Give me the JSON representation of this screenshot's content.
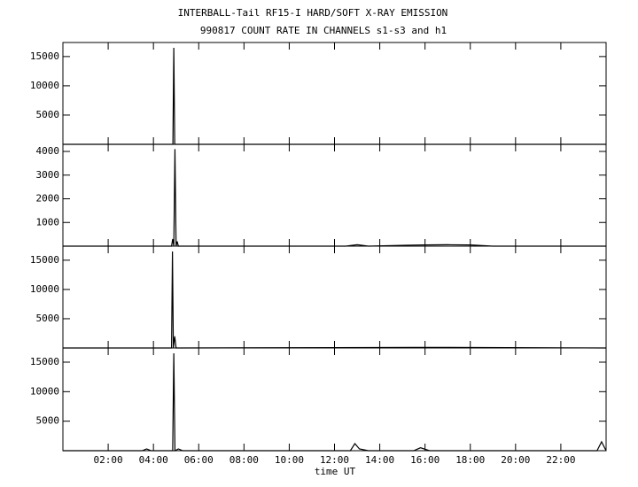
{
  "chart_data": [
    {
      "type": "line",
      "title": "INTERBALL-Tail RF15-I HARD/SOFT X-RAY EMISSION",
      "subtitle": "990817  COUNT RATE IN CHANNELS s1-s3 and h1",
      "x": [
        0,
        4.86,
        4.9,
        4.94,
        24
      ],
      "values": [
        0,
        0,
        16500,
        0,
        0
      ],
      "color": "#000000",
      "xlim": [
        0,
        24
      ],
      "ylim": [
        0,
        17400
      ],
      "yticks": [
        5000,
        10000,
        15000
      ]
    },
    {
      "type": "line",
      "x": [
        0,
        4.8,
        4.85,
        4.9,
        4.95,
        5.0,
        5.05,
        5.1,
        12.5,
        13.0,
        13.5,
        15.2,
        16,
        17,
        18,
        19,
        24
      ],
      "values": [
        0,
        0,
        300,
        0,
        4100,
        0,
        200,
        0,
        0,
        60,
        0,
        40,
        50,
        60,
        50,
        0,
        0
      ],
      "color": "#000000",
      "xlim": [
        0,
        24
      ],
      "ylim": [
        0,
        4300
      ],
      "yticks": [
        1000,
        2000,
        3000,
        4000
      ]
    },
    {
      "type": "line",
      "x": [
        0,
        4.8,
        4.84,
        4.88,
        4.94,
        5.0,
        15.5,
        16.5,
        24
      ],
      "values": [
        0,
        0,
        16500,
        0,
        2000,
        0,
        100,
        100,
        0
      ],
      "color": "#000000",
      "xlim": [
        0,
        24
      ],
      "ylim": [
        0,
        17400
      ],
      "yticks": [
        5000,
        10000,
        15000
      ]
    },
    {
      "type": "line",
      "xlabel": "time UT",
      "x": [
        0,
        3.5,
        3.7,
        3.9,
        4.85,
        4.9,
        4.95,
        5.1,
        5.3,
        12.7,
        12.9,
        13.1,
        13.5,
        15.5,
        15.8,
        16.2,
        23.6,
        23.8,
        24
      ],
      "values": [
        0,
        0,
        300,
        0,
        0,
        16500,
        0,
        300,
        0,
        0,
        1200,
        300,
        0,
        0,
        500,
        0,
        0,
        1500,
        0
      ],
      "color": "#000000",
      "xlim": [
        0,
        24
      ],
      "ylim": [
        0,
        17400
      ],
      "yticks": [
        5000,
        10000,
        15000
      ],
      "xticks": [
        {
          "value": 2,
          "label": "02:00"
        },
        {
          "value": 4,
          "label": "04:00"
        },
        {
          "value": 6,
          "label": "06:00"
        },
        {
          "value": 8,
          "label": "08:00"
        },
        {
          "value": 10,
          "label": "10:00"
        },
        {
          "value": 12,
          "label": "12:00"
        },
        {
          "value": 14,
          "label": "14:00"
        },
        {
          "value": 16,
          "label": "16:00"
        },
        {
          "value": 18,
          "label": "18:00"
        },
        {
          "value": 20,
          "label": "20:00"
        },
        {
          "value": 22,
          "label": "22:00"
        }
      ]
    }
  ]
}
